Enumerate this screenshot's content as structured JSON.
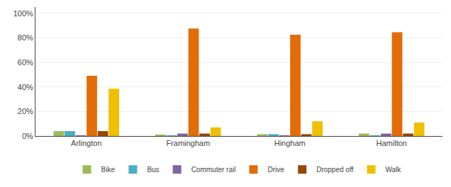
{
  "chart_data": {
    "type": "bar",
    "categories": [
      "Arlington",
      "Framingham",
      "Hingham",
      "Hamilton"
    ],
    "series": [
      {
        "name": "Bike",
        "color": "#9BBB59",
        "values": [
          0.04,
          0.01,
          0.015,
          0.02
        ]
      },
      {
        "name": "Bus",
        "color": "#4BACC6",
        "values": [
          0.04,
          0.005,
          0.015,
          0.005
        ]
      },
      {
        "name": "Commuter rail",
        "color": "#8064A2",
        "values": [
          0.005,
          0.02,
          0.005,
          0.02
        ]
      },
      {
        "name": "Drive",
        "color": "#E36C09",
        "values": [
          0.49,
          0.875,
          0.825,
          0.845
        ]
      },
      {
        "name": "Dropped off",
        "color": "#974706",
        "values": [
          0.04,
          0.02,
          0.015,
          0.02
        ]
      },
      {
        "name": "Walk",
        "color": "#F0C000",
        "values": [
          0.385,
          0.07,
          0.12,
          0.11
        ]
      }
    ],
    "ylim": [
      0,
      1.05
    ],
    "yticks": [
      {
        "value": 0,
        "label": "0%"
      },
      {
        "value": 0.2,
        "label": "20%"
      },
      {
        "value": 0.4,
        "label": "40%"
      },
      {
        "value": 0.6,
        "label": "60%"
      },
      {
        "value": 0.8,
        "label": "80%"
      },
      {
        "value": 1.0,
        "label": "100%"
      }
    ],
    "grid": true,
    "legend": "bottom"
  }
}
